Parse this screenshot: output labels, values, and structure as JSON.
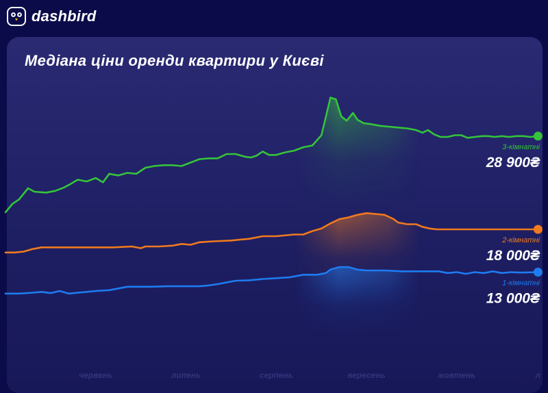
{
  "app": {
    "brand": "dashbird",
    "logo_icon": "owl-logo-icon"
  },
  "title": "Медіана ціни оренди квартири у Києві",
  "colors": {
    "background": "#0b0b4a",
    "card": "#23236a",
    "three_room": "#35c43a",
    "two_room": "#f07a1e",
    "one_room": "#1e7cf0",
    "month_labels": "#31357c"
  },
  "chart_data": {
    "type": "line",
    "title": "Медіана ціни оренди квартири у Києві",
    "xlabel": "",
    "ylabel": "",
    "x_tick_labels": [
      "червень",
      "липень",
      "серпень",
      "вересень",
      "жовтень",
      "л"
    ],
    "x_tick_positions": [
      1.0,
      2.0,
      3.0,
      4.0,
      5.0,
      5.9
    ],
    "x_range": [
      0.0,
      5.95
    ],
    "ylim": [
      0,
      40000
    ],
    "grid": false,
    "legend": "end-labels",
    "series": [
      {
        "name": "3-кімнатні",
        "end_value_label": "28 900₴",
        "color": "#35c43a",
        "points": [
          [
            0.0,
            20000
          ],
          [
            0.08,
            21000
          ],
          [
            0.15,
            21500
          ],
          [
            0.25,
            22800
          ],
          [
            0.32,
            22400
          ],
          [
            0.45,
            22300
          ],
          [
            0.55,
            22500
          ],
          [
            0.65,
            22900
          ],
          [
            0.72,
            23300
          ],
          [
            0.8,
            23800
          ],
          [
            0.9,
            23600
          ],
          [
            1.0,
            24000
          ],
          [
            1.08,
            23500
          ],
          [
            1.15,
            24500
          ],
          [
            1.25,
            24300
          ],
          [
            1.35,
            24600
          ],
          [
            1.45,
            24500
          ],
          [
            1.55,
            25200
          ],
          [
            1.65,
            25400
          ],
          [
            1.75,
            25500
          ],
          [
            1.85,
            25500
          ],
          [
            1.95,
            25400
          ],
          [
            2.05,
            25800
          ],
          [
            2.15,
            26200
          ],
          [
            2.25,
            26300
          ],
          [
            2.35,
            26300
          ],
          [
            2.45,
            26800
          ],
          [
            2.55,
            26800
          ],
          [
            2.65,
            26500
          ],
          [
            2.72,
            26400
          ],
          [
            2.78,
            26600
          ],
          [
            2.85,
            27100
          ],
          [
            2.92,
            26700
          ],
          [
            3.0,
            26700
          ],
          [
            3.1,
            27000
          ],
          [
            3.2,
            27200
          ],
          [
            3.3,
            27600
          ],
          [
            3.4,
            27800
          ],
          [
            3.5,
            29000
          ],
          [
            3.56,
            31600
          ],
          [
            3.6,
            33400
          ],
          [
            3.66,
            33200
          ],
          [
            3.72,
            31200
          ],
          [
            3.78,
            30700
          ],
          [
            3.85,
            31600
          ],
          [
            3.9,
            30800
          ],
          [
            3.97,
            30400
          ],
          [
            4.05,
            30300
          ],
          [
            4.15,
            30100
          ],
          [
            4.25,
            30000
          ],
          [
            4.35,
            29900
          ],
          [
            4.45,
            29800
          ],
          [
            4.55,
            29600
          ],
          [
            4.62,
            29300
          ],
          [
            4.68,
            29600
          ],
          [
            4.75,
            29100
          ],
          [
            4.82,
            28800
          ],
          [
            4.9,
            28800
          ],
          [
            4.98,
            29000
          ],
          [
            5.05,
            29000
          ],
          [
            5.12,
            28700
          ],
          [
            5.2,
            28800
          ],
          [
            5.28,
            28900
          ],
          [
            5.35,
            28900
          ],
          [
            5.42,
            28800
          ],
          [
            5.5,
            28900
          ],
          [
            5.58,
            28800
          ],
          [
            5.66,
            28900
          ],
          [
            5.74,
            28900
          ],
          [
            5.82,
            28800
          ],
          [
            5.9,
            28900
          ]
        ]
      },
      {
        "name": "2-кімнатні",
        "end_value_label": "18 000₴",
        "color": "#f07a1e",
        "points": [
          [
            0.0,
            15300
          ],
          [
            0.1,
            15300
          ],
          [
            0.2,
            15400
          ],
          [
            0.3,
            15700
          ],
          [
            0.4,
            15900
          ],
          [
            0.6,
            15900
          ],
          [
            1.0,
            15900
          ],
          [
            1.2,
            15900
          ],
          [
            1.4,
            16000
          ],
          [
            1.5,
            15800
          ],
          [
            1.55,
            16000
          ],
          [
            1.7,
            16000
          ],
          [
            1.85,
            16100
          ],
          [
            1.95,
            16300
          ],
          [
            2.05,
            16200
          ],
          [
            2.15,
            16500
          ],
          [
            2.3,
            16600
          ],
          [
            2.5,
            16700
          ],
          [
            2.6,
            16800
          ],
          [
            2.7,
            16900
          ],
          [
            2.85,
            17200
          ],
          [
            3.0,
            17200
          ],
          [
            3.2,
            17400
          ],
          [
            3.3,
            17400
          ],
          [
            3.4,
            17800
          ],
          [
            3.5,
            18100
          ],
          [
            3.6,
            18700
          ],
          [
            3.7,
            19200
          ],
          [
            3.8,
            19400
          ],
          [
            3.9,
            19700
          ],
          [
            4.0,
            19900
          ],
          [
            4.1,
            19800
          ],
          [
            4.2,
            19700
          ],
          [
            4.3,
            19200
          ],
          [
            4.35,
            18800
          ],
          [
            4.45,
            18600
          ],
          [
            4.55,
            18600
          ],
          [
            4.62,
            18300
          ],
          [
            4.7,
            18100
          ],
          [
            4.78,
            18000
          ],
          [
            5.0,
            18000
          ],
          [
            5.2,
            18000
          ],
          [
            5.4,
            18000
          ],
          [
            5.6,
            18000
          ],
          [
            5.9,
            18000
          ]
        ]
      },
      {
        "name": "1-кімнатні",
        "end_value_label": "13 000₴",
        "color": "#1e7cf0",
        "points": [
          [
            0.0,
            10500
          ],
          [
            0.15,
            10500
          ],
          [
            0.3,
            10600
          ],
          [
            0.4,
            10700
          ],
          [
            0.5,
            10550
          ],
          [
            0.6,
            10800
          ],
          [
            0.7,
            10500
          ],
          [
            0.8,
            10600
          ],
          [
            0.9,
            10700
          ],
          [
            1.0,
            10800
          ],
          [
            1.15,
            10900
          ],
          [
            1.25,
            11100
          ],
          [
            1.35,
            11300
          ],
          [
            1.6,
            11300
          ],
          [
            1.8,
            11350
          ],
          [
            2.0,
            11350
          ],
          [
            2.15,
            11350
          ],
          [
            2.25,
            11450
          ],
          [
            2.35,
            11600
          ],
          [
            2.55,
            12000
          ],
          [
            2.7,
            12050
          ],
          [
            2.85,
            12200
          ],
          [
            3.0,
            12300
          ],
          [
            3.15,
            12400
          ],
          [
            3.3,
            12700
          ],
          [
            3.45,
            12700
          ],
          [
            3.55,
            12900
          ],
          [
            3.6,
            13300
          ],
          [
            3.7,
            13600
          ],
          [
            3.8,
            13600
          ],
          [
            3.9,
            13300
          ],
          [
            4.0,
            13200
          ],
          [
            4.2,
            13200
          ],
          [
            4.4,
            13100
          ],
          [
            4.6,
            13100
          ],
          [
            4.8,
            13100
          ],
          [
            4.9,
            12900
          ],
          [
            5.0,
            13000
          ],
          [
            5.1,
            12800
          ],
          [
            5.2,
            13000
          ],
          [
            5.3,
            12900
          ],
          [
            5.4,
            13100
          ],
          [
            5.5,
            12900
          ],
          [
            5.6,
            13000
          ],
          [
            5.7,
            12950
          ],
          [
            5.9,
            13000
          ]
        ]
      }
    ]
  }
}
